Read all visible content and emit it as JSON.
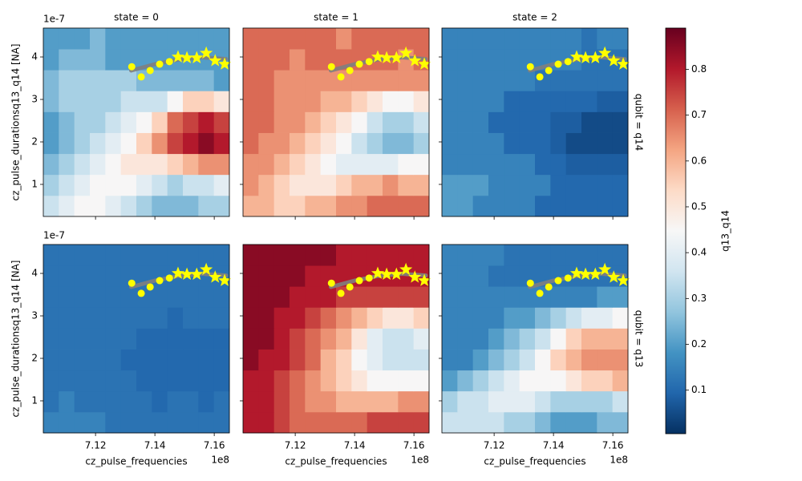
{
  "chart_data": {
    "type": "heatmap",
    "xlabel": "cz_pulse_frequencies",
    "ylabel": "cz_pulse_durationsq13_q14 [NA]",
    "x_offset": "1e8",
    "y_offset": "1e-7",
    "xlim": [
      710240000,
      716510000
    ],
    "ylim": [
      2.45e-08,
      4.68e-07
    ],
    "xticks": [
      {
        "value": 712000000,
        "label": "7.12"
      },
      {
        "value": 714000000,
        "label": "7.14"
      },
      {
        "value": 716000000,
        "label": "7.16"
      }
    ],
    "yticks": [
      {
        "value": 1e-07,
        "label": "1"
      },
      {
        "value": 2e-07,
        "label": "2"
      },
      {
        "value": 3e-07,
        "label": "3"
      },
      {
        "value": 4e-07,
        "label": "4"
      }
    ],
    "xbins": [
      710240000,
      710762500,
      711285000,
      711807500,
      712330000,
      712852500,
      713375000,
      713897500,
      714420000,
      714942500,
      715465000,
      715987500,
      716510000
    ],
    "ybins": [
      2.45e-08,
      7.38e-08,
      1.231e-07,
      1.723e-07,
      2.216e-07,
      2.709e-07,
      3.202e-07,
      3.695e-07,
      4.187e-07,
      4.68e-07
    ],
    "colormap": [
      "#053061",
      "#2166ac",
      "#4393c3",
      "#92c5de",
      "#d1e5f0",
      "#f7f7f7",
      "#fddbc7",
      "#f4a582",
      "#d6604d",
      "#b2182b",
      "#67001f"
    ],
    "colorbar": {
      "label": "q13_q14",
      "clim": [
        0.005,
        0.89
      ],
      "ticks": [
        0.1,
        0.2,
        0.3,
        0.4,
        0.5,
        0.6,
        0.7,
        0.8
      ]
    },
    "fit": {
      "color": "#808080",
      "x": [
        713200000,
        714000000,
        714800000,
        715600000,
        716400000
      ],
      "y": [
        3.68e-07,
        3.83e-07,
        3.94e-07,
        3.99e-07,
        3.95e-07
      ]
    },
    "points": {
      "color": "#ffff00",
      "x": [
        713220000,
        713540000,
        713840000,
        714160000,
        714490000
      ],
      "y": [
        3.77e-07,
        3.53e-07,
        3.68e-07,
        3.83e-07,
        3.89e-07
      ]
    },
    "stars": {
      "color": "#ffff00",
      "x": [
        714780000,
        715080000,
        715410000,
        715730000,
        716030000,
        716350000
      ],
      "y": [
        4e-07,
        3.98e-07,
        3.98e-07,
        4.09e-07,
        3.91e-07,
        3.83e-07
      ]
    },
    "panels": [
      {
        "title": "state = 0",
        "values": [
          [
            0.35,
            0.4,
            0.45,
            0.45,
            0.4,
            0.35,
            0.3,
            0.25,
            0.25,
            0.25,
            0.3,
            0.3
          ],
          [
            0.3,
            0.35,
            0.4,
            0.45,
            0.45,
            0.45,
            0.4,
            0.35,
            0.3,
            0.35,
            0.35,
            0.4
          ],
          [
            0.25,
            0.3,
            0.35,
            0.4,
            0.45,
            0.5,
            0.5,
            0.5,
            0.55,
            0.6,
            0.65,
            0.65
          ],
          [
            0.2,
            0.25,
            0.3,
            0.35,
            0.4,
            0.45,
            0.55,
            0.65,
            0.75,
            0.8,
            0.85,
            0.8
          ],
          [
            0.2,
            0.25,
            0.3,
            0.3,
            0.35,
            0.4,
            0.45,
            0.55,
            0.7,
            0.75,
            0.8,
            0.75
          ],
          [
            0.25,
            0.3,
            0.3,
            0.3,
            0.3,
            0.35,
            0.35,
            0.35,
            0.45,
            0.55,
            0.55,
            0.5
          ],
          [
            0.25,
            0.3,
            0.3,
            0.3,
            0.3,
            0.3,
            0.25,
            0.25,
            0.25,
            0.25,
            0.25,
            0.2
          ],
          [
            0.2,
            0.25,
            0.25,
            0.25,
            0.2,
            0.2,
            0.2,
            0.2,
            0.2,
            0.2,
            0.2,
            0.2
          ],
          [
            0.2,
            0.2,
            0.2,
            0.25,
            0.2,
            0.2,
            0.2,
            0.2,
            0.2,
            0.2,
            0.2,
            0.2
          ]
        ]
      },
      {
        "title": "state = 1",
        "values": [
          [
            0.6,
            0.6,
            0.55,
            0.55,
            0.6,
            0.6,
            0.65,
            0.65,
            0.7,
            0.7,
            0.7,
            0.7
          ],
          [
            0.65,
            0.6,
            0.55,
            0.5,
            0.5,
            0.5,
            0.55,
            0.6,
            0.6,
            0.65,
            0.6,
            0.6
          ],
          [
            0.65,
            0.65,
            0.6,
            0.55,
            0.5,
            0.45,
            0.4,
            0.4,
            0.4,
            0.4,
            0.45,
            0.45
          ],
          [
            0.7,
            0.65,
            0.65,
            0.6,
            0.55,
            0.5,
            0.45,
            0.35,
            0.3,
            0.25,
            0.25,
            0.3
          ],
          [
            0.7,
            0.7,
            0.65,
            0.65,
            0.6,
            0.55,
            0.5,
            0.45,
            0.35,
            0.3,
            0.3,
            0.35
          ],
          [
            0.7,
            0.7,
            0.65,
            0.65,
            0.65,
            0.6,
            0.6,
            0.55,
            0.5,
            0.45,
            0.45,
            0.5
          ],
          [
            0.7,
            0.7,
            0.65,
            0.65,
            0.65,
            0.65,
            0.65,
            0.65,
            0.65,
            0.65,
            0.65,
            0.65
          ],
          [
            0.7,
            0.7,
            0.7,
            0.65,
            0.7,
            0.7,
            0.7,
            0.7,
            0.7,
            0.7,
            0.65,
            0.7
          ],
          [
            0.7,
            0.7,
            0.7,
            0.7,
            0.7,
            0.7,
            0.65,
            0.7,
            0.7,
            0.7,
            0.7,
            0.7
          ]
        ]
      },
      {
        "title": "state = 2",
        "row_label": "qubit = q14",
        "values": [
          [
            0.2,
            0.2,
            0.15,
            0.15,
            0.15,
            0.15,
            0.1,
            0.1,
            0.1,
            0.1,
            0.1,
            0.1
          ],
          [
            0.2,
            0.2,
            0.2,
            0.15,
            0.15,
            0.15,
            0.15,
            0.1,
            0.1,
            0.1,
            0.1,
            0.1
          ],
          [
            0.15,
            0.15,
            0.15,
            0.15,
            0.15,
            0.15,
            0.1,
            0.1,
            0.08,
            0.08,
            0.08,
            0.08
          ],
          [
            0.15,
            0.15,
            0.15,
            0.15,
            0.1,
            0.1,
            0.1,
            0.08,
            0.05,
            0.05,
            0.05,
            0.05
          ],
          [
            0.15,
            0.15,
            0.15,
            0.1,
            0.1,
            0.1,
            0.1,
            0.08,
            0.08,
            0.05,
            0.05,
            0.05
          ],
          [
            0.15,
            0.15,
            0.15,
            0.15,
            0.1,
            0.1,
            0.1,
            0.1,
            0.1,
            0.1,
            0.08,
            0.08
          ],
          [
            0.15,
            0.15,
            0.15,
            0.15,
            0.15,
            0.15,
            0.12,
            0.12,
            0.12,
            0.12,
            0.12,
            0.12
          ],
          [
            0.15,
            0.15,
            0.15,
            0.15,
            0.15,
            0.15,
            0.15,
            0.15,
            0.15,
            0.12,
            0.12,
            0.12
          ],
          [
            0.15,
            0.15,
            0.15,
            0.15,
            0.15,
            0.15,
            0.15,
            0.15,
            0.15,
            0.12,
            0.15,
            0.15
          ]
        ]
      },
      {
        "values": [
          [
            0.15,
            0.15,
            0.15,
            0.15,
            0.12,
            0.12,
            0.12,
            0.12,
            0.12,
            0.12,
            0.12,
            0.12
          ],
          [
            0.12,
            0.15,
            0.12,
            0.12,
            0.12,
            0.12,
            0.12,
            0.1,
            0.12,
            0.12,
            0.1,
            0.12
          ],
          [
            0.12,
            0.12,
            0.12,
            0.12,
            0.12,
            0.12,
            0.1,
            0.1,
            0.1,
            0.1,
            0.1,
            0.1
          ],
          [
            0.12,
            0.12,
            0.12,
            0.12,
            0.12,
            0.1,
            0.1,
            0.1,
            0.1,
            0.1,
            0.1,
            0.1
          ],
          [
            0.12,
            0.12,
            0.12,
            0.12,
            0.12,
            0.12,
            0.1,
            0.1,
            0.1,
            0.1,
            0.1,
            0.1
          ],
          [
            0.12,
            0.12,
            0.12,
            0.12,
            0.12,
            0.12,
            0.12,
            0.12,
            0.1,
            0.12,
            0.12,
            0.12
          ],
          [
            0.12,
            0.12,
            0.12,
            0.12,
            0.12,
            0.12,
            0.12,
            0.12,
            0.12,
            0.12,
            0.12,
            0.12
          ],
          [
            0.12,
            0.12,
            0.12,
            0.12,
            0.12,
            0.12,
            0.12,
            0.12,
            0.12,
            0.12,
            0.12,
            0.12
          ],
          [
            0.12,
            0.12,
            0.12,
            0.12,
            0.12,
            0.12,
            0.12,
            0.12,
            0.12,
            0.12,
            0.12,
            0.12
          ]
        ]
      },
      {
        "values": [
          [
            0.8,
            0.8,
            0.75,
            0.7,
            0.7,
            0.7,
            0.7,
            0.7,
            0.75,
            0.75,
            0.75,
            0.75
          ],
          [
            0.8,
            0.8,
            0.75,
            0.7,
            0.65,
            0.65,
            0.6,
            0.6,
            0.6,
            0.6,
            0.65,
            0.65
          ],
          [
            0.8,
            0.8,
            0.75,
            0.7,
            0.65,
            0.6,
            0.55,
            0.5,
            0.45,
            0.45,
            0.45,
            0.45
          ],
          [
            0.85,
            0.8,
            0.8,
            0.75,
            0.7,
            0.6,
            0.55,
            0.45,
            0.4,
            0.35,
            0.35,
            0.35
          ],
          [
            0.85,
            0.85,
            0.8,
            0.75,
            0.7,
            0.65,
            0.6,
            0.5,
            0.4,
            0.35,
            0.35,
            0.4
          ],
          [
            0.85,
            0.85,
            0.8,
            0.8,
            0.75,
            0.7,
            0.65,
            0.6,
            0.55,
            0.5,
            0.5,
            0.55
          ],
          [
            0.85,
            0.85,
            0.85,
            0.8,
            0.8,
            0.8,
            0.75,
            0.75,
            0.75,
            0.75,
            0.75,
            0.75
          ],
          [
            0.85,
            0.85,
            0.85,
            0.85,
            0.8,
            0.8,
            0.8,
            0.8,
            0.8,
            0.8,
            0.8,
            0.8
          ],
          [
            0.85,
            0.85,
            0.85,
            0.85,
            0.85,
            0.85,
            0.8,
            0.8,
            0.8,
            0.8,
            0.8,
            0.8
          ]
        ]
      },
      {
        "row_label": "qubit = q13",
        "values": [
          [
            0.35,
            0.35,
            0.35,
            0.35,
            0.3,
            0.3,
            0.25,
            0.2,
            0.2,
            0.2,
            0.25,
            0.25
          ],
          [
            0.3,
            0.35,
            0.35,
            0.4,
            0.4,
            0.4,
            0.35,
            0.3,
            0.3,
            0.3,
            0.3,
            0.35
          ],
          [
            0.2,
            0.25,
            0.3,
            0.35,
            0.4,
            0.45,
            0.45,
            0.45,
            0.5,
            0.55,
            0.55,
            0.6
          ],
          [
            0.15,
            0.15,
            0.2,
            0.25,
            0.3,
            0.35,
            0.45,
            0.55,
            0.6,
            0.65,
            0.65,
            0.65
          ],
          [
            0.15,
            0.15,
            0.15,
            0.2,
            0.25,
            0.3,
            0.35,
            0.45,
            0.55,
            0.6,
            0.6,
            0.6
          ],
          [
            0.15,
            0.15,
            0.15,
            0.15,
            0.2,
            0.2,
            0.25,
            0.3,
            0.35,
            0.4,
            0.4,
            0.45
          ],
          [
            0.15,
            0.15,
            0.15,
            0.15,
            0.15,
            0.15,
            0.15,
            0.15,
            0.15,
            0.15,
            0.2,
            0.2
          ],
          [
            0.15,
            0.15,
            0.15,
            0.12,
            0.12,
            0.12,
            0.12,
            0.12,
            0.12,
            0.12,
            0.12,
            0.12
          ],
          [
            0.15,
            0.15,
            0.15,
            0.15,
            0.12,
            0.12,
            0.12,
            0.12,
            0.12,
            0.12,
            0.12,
            0.12
          ]
        ]
      }
    ]
  }
}
